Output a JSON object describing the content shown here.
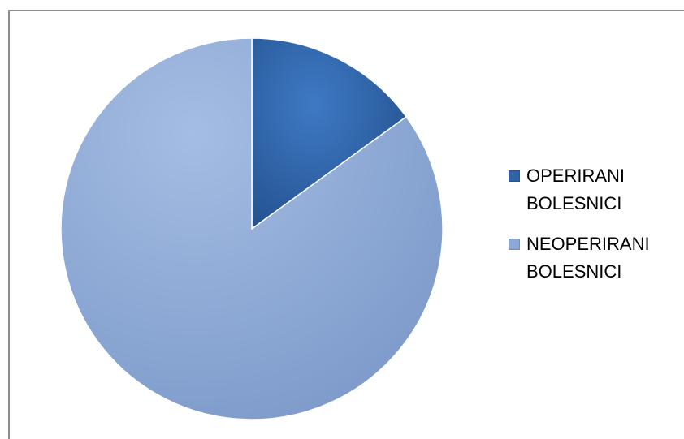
{
  "chart_data": {
    "type": "pie",
    "categories": [
      "OPERIRANI BOLESNICI",
      "NEOPERIRANI BOLESNICI"
    ],
    "values": [
      15,
      85
    ],
    "colors": [
      "#2f63a6",
      "#8aa7d5"
    ],
    "title": "",
    "legend_position": "right",
    "start_angle": "top, clockwise"
  },
  "legend": {
    "items": [
      {
        "label": "OPERIRANI\nBOLESNICI",
        "color": "#2f63a6"
      },
      {
        "label": "NEOPERIRANI\nBOLESNICI",
        "color": "#8aa7d5"
      }
    ]
  }
}
